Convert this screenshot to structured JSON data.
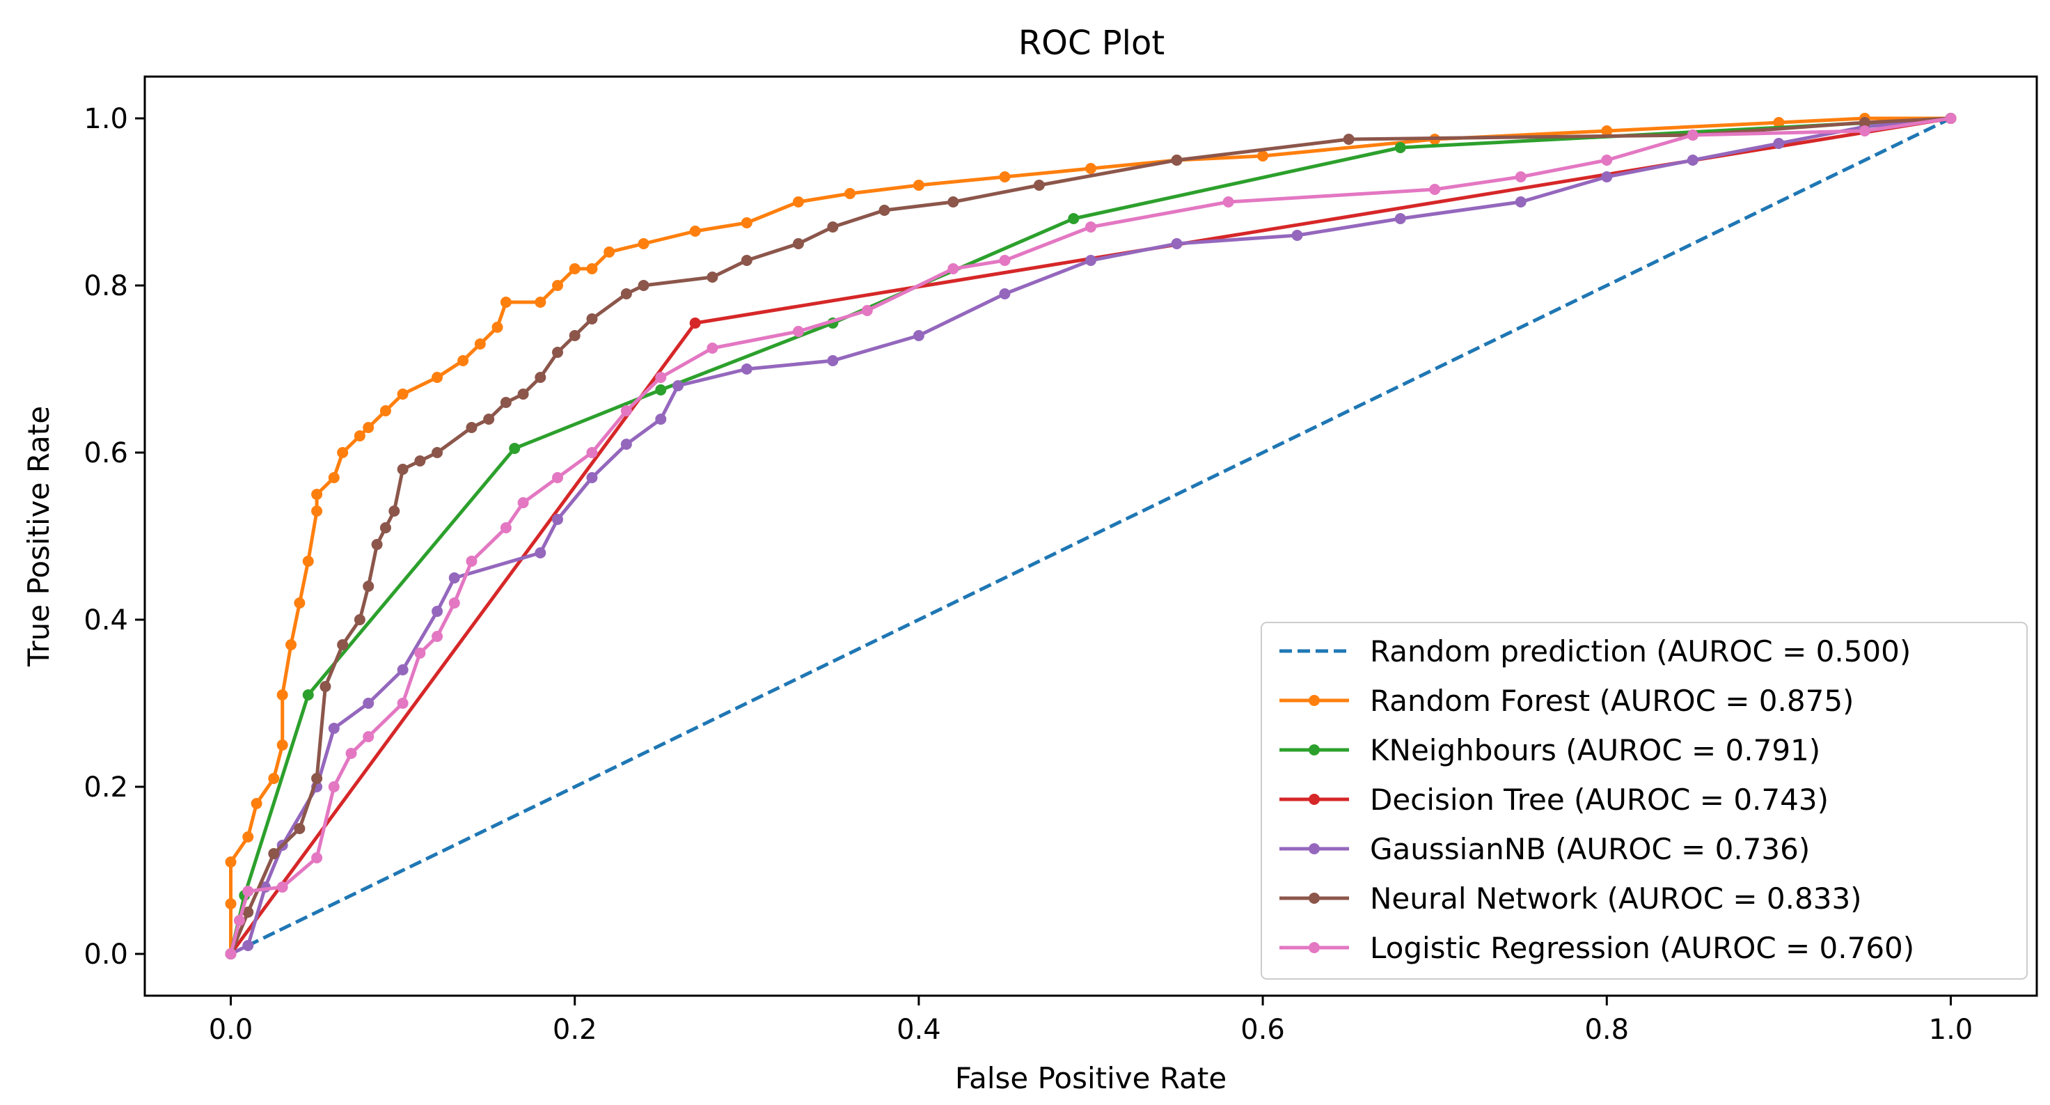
{
  "chart_data": {
    "type": "line",
    "title": "ROC Plot",
    "xlabel": "False Positive Rate",
    "ylabel": "True Positive Rate",
    "xlim": [
      -0.05,
      1.05
    ],
    "ylim": [
      -0.05,
      1.05
    ],
    "xticks": [
      0.0,
      0.2,
      0.4,
      0.6,
      0.8,
      1.0
    ],
    "yticks": [
      0.0,
      0.2,
      0.4,
      0.6,
      0.8,
      1.0
    ],
    "xtick_labels": [
      "0.0",
      "0.2",
      "0.4",
      "0.6",
      "0.8",
      "1.0"
    ],
    "ytick_labels": [
      "0.0",
      "0.2",
      "0.4",
      "0.6",
      "0.8",
      "1.0"
    ],
    "grid": false,
    "legend_position": "lower-right",
    "series": [
      {
        "name": "Random prediction (AUROC = 0.500)",
        "color": "#1f77b4",
        "style": "dashed",
        "markers": false,
        "points": [
          [
            0,
            0
          ],
          [
            1,
            1
          ]
        ]
      },
      {
        "name": "Random Forest (AUROC = 0.875)",
        "color": "#ff7f0e",
        "style": "solid",
        "markers": true,
        "points": [
          [
            0,
            0
          ],
          [
            0,
            0.06
          ],
          [
            0,
            0.11
          ],
          [
            0.01,
            0.14
          ],
          [
            0.015,
            0.18
          ],
          [
            0.025,
            0.21
          ],
          [
            0.03,
            0.25
          ],
          [
            0.03,
            0.31
          ],
          [
            0.035,
            0.37
          ],
          [
            0.04,
            0.42
          ],
          [
            0.045,
            0.47
          ],
          [
            0.05,
            0.53
          ],
          [
            0.05,
            0.55
          ],
          [
            0.06,
            0.57
          ],
          [
            0.065,
            0.6
          ],
          [
            0.075,
            0.62
          ],
          [
            0.08,
            0.63
          ],
          [
            0.09,
            0.65
          ],
          [
            0.1,
            0.67
          ],
          [
            0.12,
            0.69
          ],
          [
            0.135,
            0.71
          ],
          [
            0.145,
            0.73
          ],
          [
            0.155,
            0.75
          ],
          [
            0.16,
            0.78
          ],
          [
            0.18,
            0.78
          ],
          [
            0.19,
            0.8
          ],
          [
            0.2,
            0.82
          ],
          [
            0.21,
            0.82
          ],
          [
            0.22,
            0.84
          ],
          [
            0.24,
            0.85
          ],
          [
            0.27,
            0.865
          ],
          [
            0.3,
            0.875
          ],
          [
            0.33,
            0.9
          ],
          [
            0.36,
            0.91
          ],
          [
            0.4,
            0.92
          ],
          [
            0.45,
            0.93
          ],
          [
            0.5,
            0.94
          ],
          [
            0.55,
            0.95
          ],
          [
            0.6,
            0.955
          ],
          [
            0.7,
            0.975
          ],
          [
            0.8,
            0.985
          ],
          [
            0.9,
            0.995
          ],
          [
            0.95,
            1.0
          ],
          [
            1.0,
            1.0
          ]
        ]
      },
      {
        "name": "KNeighbours (AUROC = 0.791)",
        "color": "#2ca02c",
        "style": "solid",
        "markers": true,
        "points": [
          [
            0,
            0
          ],
          [
            0.008,
            0.07
          ],
          [
            0.045,
            0.31
          ],
          [
            0.165,
            0.605
          ],
          [
            0.25,
            0.675
          ],
          [
            0.35,
            0.755
          ],
          [
            0.49,
            0.88
          ],
          [
            0.68,
            0.965
          ],
          [
            1.0,
            1.0
          ]
        ]
      },
      {
        "name": "Decision Tree (AUROC = 0.743)",
        "color": "#d62728",
        "style": "solid",
        "markers": true,
        "points": [
          [
            0,
            0
          ],
          [
            0.27,
            0.755
          ],
          [
            1.0,
            1.0
          ]
        ]
      },
      {
        "name": "GaussianNB (AUROC = 0.736)",
        "color": "#9467bd",
        "style": "solid",
        "markers": true,
        "points": [
          [
            0,
            0
          ],
          [
            0.01,
            0.01
          ],
          [
            0.02,
            0.08
          ],
          [
            0.03,
            0.13
          ],
          [
            0.05,
            0.2
          ],
          [
            0.06,
            0.27
          ],
          [
            0.08,
            0.3
          ],
          [
            0.1,
            0.34
          ],
          [
            0.12,
            0.41
          ],
          [
            0.13,
            0.45
          ],
          [
            0.18,
            0.48
          ],
          [
            0.19,
            0.52
          ],
          [
            0.21,
            0.57
          ],
          [
            0.23,
            0.61
          ],
          [
            0.25,
            0.64
          ],
          [
            0.26,
            0.68
          ],
          [
            0.3,
            0.7
          ],
          [
            0.35,
            0.71
          ],
          [
            0.4,
            0.74
          ],
          [
            0.45,
            0.79
          ],
          [
            0.5,
            0.83
          ],
          [
            0.55,
            0.85
          ],
          [
            0.62,
            0.86
          ],
          [
            0.68,
            0.88
          ],
          [
            0.75,
            0.9
          ],
          [
            0.8,
            0.93
          ],
          [
            0.85,
            0.95
          ],
          [
            0.9,
            0.97
          ],
          [
            0.95,
            0.99
          ],
          [
            1.0,
            1.0
          ]
        ]
      },
      {
        "name": "Neural Network (AUROC = 0.833)",
        "color": "#8c564b",
        "style": "solid",
        "markers": true,
        "points": [
          [
            0,
            0
          ],
          [
            0.01,
            0.05
          ],
          [
            0.025,
            0.12
          ],
          [
            0.04,
            0.15
          ],
          [
            0.05,
            0.21
          ],
          [
            0.055,
            0.32
          ],
          [
            0.065,
            0.37
          ],
          [
            0.075,
            0.4
          ],
          [
            0.08,
            0.44
          ],
          [
            0.085,
            0.49
          ],
          [
            0.09,
            0.51
          ],
          [
            0.095,
            0.53
          ],
          [
            0.1,
            0.58
          ],
          [
            0.11,
            0.59
          ],
          [
            0.12,
            0.6
          ],
          [
            0.14,
            0.63
          ],
          [
            0.15,
            0.64
          ],
          [
            0.16,
            0.66
          ],
          [
            0.17,
            0.67
          ],
          [
            0.18,
            0.69
          ],
          [
            0.19,
            0.72
          ],
          [
            0.2,
            0.74
          ],
          [
            0.21,
            0.76
          ],
          [
            0.23,
            0.79
          ],
          [
            0.24,
            0.8
          ],
          [
            0.28,
            0.81
          ],
          [
            0.3,
            0.83
          ],
          [
            0.33,
            0.85
          ],
          [
            0.35,
            0.87
          ],
          [
            0.38,
            0.89
          ],
          [
            0.42,
            0.9
          ],
          [
            0.47,
            0.92
          ],
          [
            0.55,
            0.95
          ],
          [
            0.65,
            0.975
          ],
          [
            0.85,
            0.98
          ],
          [
            0.95,
            0.995
          ],
          [
            1.0,
            1.0
          ]
        ]
      },
      {
        "name": "Logistic Regression (AUROC = 0.760)",
        "color": "#e377c2",
        "style": "solid",
        "markers": true,
        "points": [
          [
            0,
            0
          ],
          [
            0.005,
            0.04
          ],
          [
            0.01,
            0.075
          ],
          [
            0.03,
            0.08
          ],
          [
            0.05,
            0.115
          ],
          [
            0.06,
            0.2
          ],
          [
            0.07,
            0.24
          ],
          [
            0.08,
            0.26
          ],
          [
            0.1,
            0.3
          ],
          [
            0.11,
            0.36
          ],
          [
            0.12,
            0.38
          ],
          [
            0.13,
            0.42
          ],
          [
            0.14,
            0.47
          ],
          [
            0.16,
            0.51
          ],
          [
            0.17,
            0.54
          ],
          [
            0.19,
            0.57
          ],
          [
            0.21,
            0.6
          ],
          [
            0.23,
            0.65
          ],
          [
            0.25,
            0.69
          ],
          [
            0.28,
            0.725
          ],
          [
            0.33,
            0.745
          ],
          [
            0.37,
            0.77
          ],
          [
            0.42,
            0.82
          ],
          [
            0.45,
            0.83
          ],
          [
            0.5,
            0.87
          ],
          [
            0.58,
            0.9
          ],
          [
            0.7,
            0.915
          ],
          [
            0.75,
            0.93
          ],
          [
            0.8,
            0.95
          ],
          [
            0.85,
            0.98
          ],
          [
            0.95,
            0.985
          ],
          [
            1.0,
            1.0
          ]
        ]
      }
    ]
  }
}
